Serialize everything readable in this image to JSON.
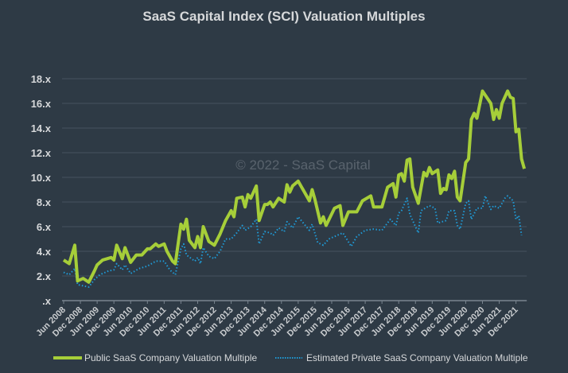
{
  "chart_data": {
    "type": "line",
    "title": "SaaS Capital Index (SCI) Valuation Multiples",
    "watermark": "© 2022 - SaaS Capital",
    "xlabel": "",
    "ylabel": "",
    "ylim": [
      0,
      18
    ],
    "yticks": [
      0,
      2,
      4,
      6,
      8,
      10,
      12,
      14,
      16,
      18
    ],
    "ytick_labels": [
      ".x",
      "2.x",
      "4.x",
      "6.x",
      "8.x",
      "10.x",
      "12.x",
      "14.x",
      "16.x",
      "18.x"
    ],
    "xlim": [
      "2008-06",
      "2022-03"
    ],
    "xtick_labels": [
      "Jun 2008",
      "Dec 2008",
      "Jun 2009",
      "Dec 2009",
      "Jun 2010",
      "Dec 2010",
      "Jun 2011",
      "Dec 2011",
      "Jun 2012",
      "Dec 2012",
      "Jun 2013",
      "Dec 2013",
      "Jun 2014",
      "Dec 2014",
      "Jun 2015",
      "Dec 2015",
      "Jun 2016",
      "Dec 2016",
      "Jun 2017",
      "Dec 2017",
      "Jun 2018",
      "Dec 2018",
      "Jun 2019",
      "Dec 2019",
      "Jun 2020",
      "Dec 2020",
      "Jun 2021",
      "Dec 2021"
    ],
    "grid": "horizontal",
    "legend": "bottom",
    "series": [
      {
        "name": "Public SaaS Company Valuation Multiple",
        "color": "#a6ce39",
        "style": "solid",
        "points": [
          [
            "2008-06",
            3.3
          ],
          [
            "2008-08",
            3.0
          ],
          [
            "2008-10",
            4.5
          ],
          [
            "2008-11",
            1.6
          ],
          [
            "2009-01",
            1.8
          ],
          [
            "2009-03",
            1.5
          ],
          [
            "2009-05",
            2.4
          ],
          [
            "2009-06",
            2.9
          ],
          [
            "2009-08",
            3.3
          ],
          [
            "2009-11",
            3.5
          ],
          [
            "2009-12",
            3.3
          ],
          [
            "2010-01",
            4.5
          ],
          [
            "2010-03",
            3.4
          ],
          [
            "2010-04",
            4.3
          ],
          [
            "2010-06",
            3.1
          ],
          [
            "2010-08",
            3.7
          ],
          [
            "2010-10",
            3.7
          ],
          [
            "2010-12",
            4.2
          ],
          [
            "2011-01",
            4.2
          ],
          [
            "2011-03",
            4.6
          ],
          [
            "2011-04",
            4.4
          ],
          [
            "2011-06",
            4.6
          ],
          [
            "2011-07",
            4.0
          ],
          [
            "2011-09",
            3.2
          ],
          [
            "2011-10",
            3.0
          ],
          [
            "2011-12",
            6.2
          ],
          [
            "2012-01",
            5.8
          ],
          [
            "2012-02",
            6.6
          ],
          [
            "2012-03",
            4.9
          ],
          [
            "2012-05",
            4.3
          ],
          [
            "2012-06",
            5.2
          ],
          [
            "2012-07",
            4.3
          ],
          [
            "2012-08",
            6.0
          ],
          [
            "2012-10",
            4.8
          ],
          [
            "2012-12",
            4.5
          ],
          [
            "2013-02",
            5.4
          ],
          [
            "2013-04",
            6.5
          ],
          [
            "2013-06",
            7.3
          ],
          [
            "2013-07",
            6.8
          ],
          [
            "2013-08",
            8.3
          ],
          [
            "2013-10",
            8.4
          ],
          [
            "2013-11",
            7.6
          ],
          [
            "2013-12",
            8.6
          ],
          [
            "2014-01",
            8.3
          ],
          [
            "2014-02",
            8.8
          ],
          [
            "2014-03",
            9.3
          ],
          [
            "2014-04",
            6.5
          ],
          [
            "2014-06",
            7.8
          ],
          [
            "2014-07",
            7.8
          ],
          [
            "2014-08",
            8.0
          ],
          [
            "2014-09",
            7.6
          ],
          [
            "2014-11",
            8.3
          ],
          [
            "2015-01",
            8.0
          ],
          [
            "2015-02",
            9.4
          ],
          [
            "2015-03",
            8.8
          ],
          [
            "2015-04",
            9.3
          ],
          [
            "2015-06",
            9.7
          ],
          [
            "2015-10",
            8.1
          ],
          [
            "2015-11",
            9.0
          ],
          [
            "2015-12",
            8.2
          ],
          [
            "2016-02",
            6.3
          ],
          [
            "2016-03",
            6.8
          ],
          [
            "2016-04",
            6.1
          ],
          [
            "2016-07",
            7.5
          ],
          [
            "2016-09",
            7.7
          ],
          [
            "2016-10",
            6.1
          ],
          [
            "2016-12",
            7.2
          ],
          [
            "2017-03",
            7.2
          ],
          [
            "2017-05",
            8.1
          ],
          [
            "2017-08",
            8.5
          ],
          [
            "2017-09",
            7.6
          ],
          [
            "2017-12",
            7.6
          ],
          [
            "2018-02",
            9.2
          ],
          [
            "2018-04",
            9.5
          ],
          [
            "2018-05",
            8.4
          ],
          [
            "2018-06",
            10.2
          ],
          [
            "2018-07",
            10.3
          ],
          [
            "2018-08",
            9.7
          ],
          [
            "2018-09",
            11.4
          ],
          [
            "2018-10",
            11.5
          ],
          [
            "2018-11",
            9.2
          ],
          [
            "2019-01",
            7.9
          ],
          [
            "2019-03",
            10.4
          ],
          [
            "2019-04",
            10.1
          ],
          [
            "2019-05",
            10.8
          ],
          [
            "2019-06",
            10.3
          ],
          [
            "2019-08",
            10.6
          ],
          [
            "2019-09",
            8.7
          ],
          [
            "2019-10",
            9.1
          ],
          [
            "2019-11",
            9.0
          ],
          [
            "2019-12",
            10.2
          ],
          [
            "2020-01",
            9.9
          ],
          [
            "2020-02",
            10.5
          ],
          [
            "2020-03",
            8.4
          ],
          [
            "2020-04",
            8.1
          ],
          [
            "2020-06",
            11.2
          ],
          [
            "2020-07",
            11.5
          ],
          [
            "2020-08",
            14.7
          ],
          [
            "2020-09",
            15.2
          ],
          [
            "2020-10",
            14.8
          ],
          [
            "2020-12",
            17.0
          ],
          [
            "2021-03",
            16.0
          ],
          [
            "2021-04",
            14.7
          ],
          [
            "2021-05",
            15.5
          ],
          [
            "2021-06",
            14.8
          ],
          [
            "2021-07",
            16.0
          ],
          [
            "2021-09",
            17.0
          ],
          [
            "2021-10",
            16.5
          ],
          [
            "2021-11",
            16.4
          ],
          [
            "2021-12",
            13.7
          ],
          [
            "2022-01",
            13.9
          ],
          [
            "2022-02",
            11.5
          ],
          [
            "2022-03",
            10.7
          ]
        ]
      },
      {
        "name": "Estimated Private SaaS Company Valuation Multiple",
        "color": "#1f9bd7",
        "style": "dotted",
        "points": [
          [
            "2008-06",
            2.3
          ],
          [
            "2008-08",
            2.1
          ],
          [
            "2008-10",
            2.6
          ],
          [
            "2008-11",
            1.3
          ],
          [
            "2009-01",
            1.2
          ],
          [
            "2009-03",
            1.1
          ],
          [
            "2009-05",
            1.7
          ],
          [
            "2009-07",
            2.1
          ],
          [
            "2009-10",
            2.4
          ],
          [
            "2009-12",
            2.5
          ],
          [
            "2010-01",
            3.0
          ],
          [
            "2010-03",
            2.5
          ],
          [
            "2010-04",
            2.9
          ],
          [
            "2010-06",
            2.2
          ],
          [
            "2010-09",
            2.6
          ],
          [
            "2010-12",
            2.8
          ],
          [
            "2011-03",
            3.2
          ],
          [
            "2011-06",
            3.2
          ],
          [
            "2011-08",
            2.5
          ],
          [
            "2011-10",
            2.1
          ],
          [
            "2011-12",
            4.2
          ],
          [
            "2012-01",
            4.6
          ],
          [
            "2012-02",
            3.7
          ],
          [
            "2012-05",
            3.2
          ],
          [
            "2012-06",
            3.5
          ],
          [
            "2012-07",
            3.0
          ],
          [
            "2012-08",
            4.3
          ],
          [
            "2012-10",
            3.6
          ],
          [
            "2012-12",
            3.4
          ],
          [
            "2013-02",
            4.0
          ],
          [
            "2013-04",
            5.0
          ],
          [
            "2013-06",
            5.0
          ],
          [
            "2013-08",
            5.5
          ],
          [
            "2013-10",
            6.1
          ],
          [
            "2013-11",
            5.7
          ],
          [
            "2014-01",
            6.0
          ],
          [
            "2014-03",
            6.6
          ],
          [
            "2014-04",
            4.6
          ],
          [
            "2014-06",
            5.6
          ],
          [
            "2014-08",
            5.5
          ],
          [
            "2014-09",
            5.3
          ],
          [
            "2014-11",
            5.9
          ],
          [
            "2015-01",
            5.6
          ],
          [
            "2015-02",
            6.4
          ],
          [
            "2015-04",
            5.9
          ],
          [
            "2015-06",
            6.8
          ],
          [
            "2015-10",
            5.7
          ],
          [
            "2015-11",
            6.2
          ],
          [
            "2016-01",
            4.7
          ],
          [
            "2016-03",
            4.5
          ],
          [
            "2016-05",
            5.0
          ],
          [
            "2016-10",
            5.5
          ],
          [
            "2017-01",
            4.4
          ],
          [
            "2017-03",
            5.2
          ],
          [
            "2017-06",
            5.7
          ],
          [
            "2017-09",
            5.8
          ],
          [
            "2017-12",
            5.7
          ],
          [
            "2018-03",
            6.6
          ],
          [
            "2018-05",
            6.1
          ],
          [
            "2018-06",
            7.1
          ],
          [
            "2018-07",
            7.3
          ],
          [
            "2018-09",
            8.3
          ],
          [
            "2018-10",
            7.0
          ],
          [
            "2019-01",
            5.5
          ],
          [
            "2019-02",
            7.3
          ],
          [
            "2019-05",
            7.7
          ],
          [
            "2019-07",
            7.5
          ],
          [
            "2019-08",
            6.3
          ],
          [
            "2019-11",
            6.5
          ],
          [
            "2019-12",
            7.3
          ],
          [
            "2020-02",
            7.3
          ],
          [
            "2020-03",
            6.1
          ],
          [
            "2020-04",
            5.8
          ],
          [
            "2020-06",
            7.9
          ],
          [
            "2020-07",
            8.1
          ],
          [
            "2020-08",
            6.6
          ],
          [
            "2020-10",
            7.5
          ],
          [
            "2020-12",
            7.5
          ],
          [
            "2021-01",
            8.5
          ],
          [
            "2021-03",
            7.4
          ],
          [
            "2021-04",
            7.7
          ],
          [
            "2021-06",
            7.5
          ],
          [
            "2021-08",
            8.3
          ],
          [
            "2021-09",
            8.5
          ],
          [
            "2021-11",
            8.1
          ],
          [
            "2021-12",
            6.6
          ],
          [
            "2022-01",
            6.9
          ],
          [
            "2022-02",
            5.3
          ]
        ]
      }
    ]
  }
}
